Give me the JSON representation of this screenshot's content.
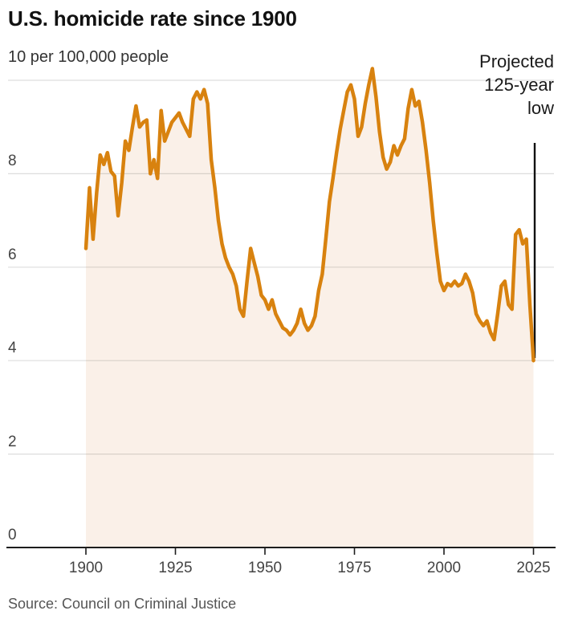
{
  "header": {
    "title": "U.S. homicide rate since 1900",
    "subtitle": "10 per 100,000 people"
  },
  "annotation": {
    "lines": [
      "Projected",
      "125-year",
      "low"
    ]
  },
  "source_label": "Source: Council on Criminal Justice",
  "colors": {
    "line": "#D8820F",
    "area_fill": "#FAF0E8",
    "gridline": "rgba(0,0,0,0.135)",
    "axis": "#1d1d1d",
    "annotation_line": "#111111",
    "title_text": "#111111",
    "tick_text": "#444444",
    "source_text": "#555555"
  },
  "chart_data": {
    "type": "area",
    "title": "U.S. homicide rate since 1900",
    "ylabel": "10 per 100,000 people",
    "xlabel": "",
    "x_start": 1900,
    "x_step": 1,
    "xlim": [
      1900,
      2025
    ],
    "ylim": [
      0,
      10
    ],
    "x_ticks": [
      1900,
      1925,
      1950,
      1975,
      2000,
      2025
    ],
    "y_ticks": [
      0,
      2,
      4,
      6,
      8
    ],
    "grid": true,
    "legend_position": "none",
    "annotation_text": "Projected 125-year low",
    "annotation_x": 2025,
    "annotation_y": 4.0,
    "values": [
      6.4,
      7.7,
      6.6,
      7.6,
      8.4,
      8.2,
      8.45,
      8.05,
      7.95,
      7.1,
      7.8,
      8.7,
      8.5,
      9.0,
      9.45,
      9.0,
      9.1,
      9.15,
      8.0,
      8.3,
      7.9,
      9.35,
      8.7,
      8.9,
      9.1,
      9.2,
      9.3,
      9.1,
      8.95,
      8.8,
      9.6,
      9.75,
      9.6,
      9.8,
      9.5,
      8.3,
      7.7,
      7.0,
      6.5,
      6.2,
      6.0,
      5.85,
      5.6,
      5.1,
      4.95,
      5.7,
      6.4,
      6.1,
      5.8,
      5.4,
      5.3,
      5.1,
      5.3,
      5.0,
      4.85,
      4.7,
      4.65,
      4.55,
      4.65,
      4.8,
      5.1,
      4.8,
      4.65,
      4.75,
      4.95,
      5.5,
      5.85,
      6.6,
      7.4,
      7.9,
      8.45,
      8.95,
      9.35,
      9.75,
      9.9,
      9.6,
      8.8,
      9.0,
      9.5,
      9.9,
      10.25,
      9.65,
      8.9,
      8.35,
      8.1,
      8.25,
      8.6,
      8.4,
      8.6,
      8.75,
      9.4,
      9.8,
      9.45,
      9.55,
      9.1,
      8.5,
      7.8,
      7.0,
      6.3,
      5.7,
      5.5,
      5.65,
      5.6,
      5.7,
      5.6,
      5.65,
      5.85,
      5.7,
      5.45,
      5.0,
      4.85,
      4.75,
      4.85,
      4.6,
      4.45,
      5.0,
      5.6,
      5.7,
      5.2,
      5.1,
      6.7,
      6.8,
      6.5,
      6.6,
      5.2,
      4.0
    ]
  }
}
